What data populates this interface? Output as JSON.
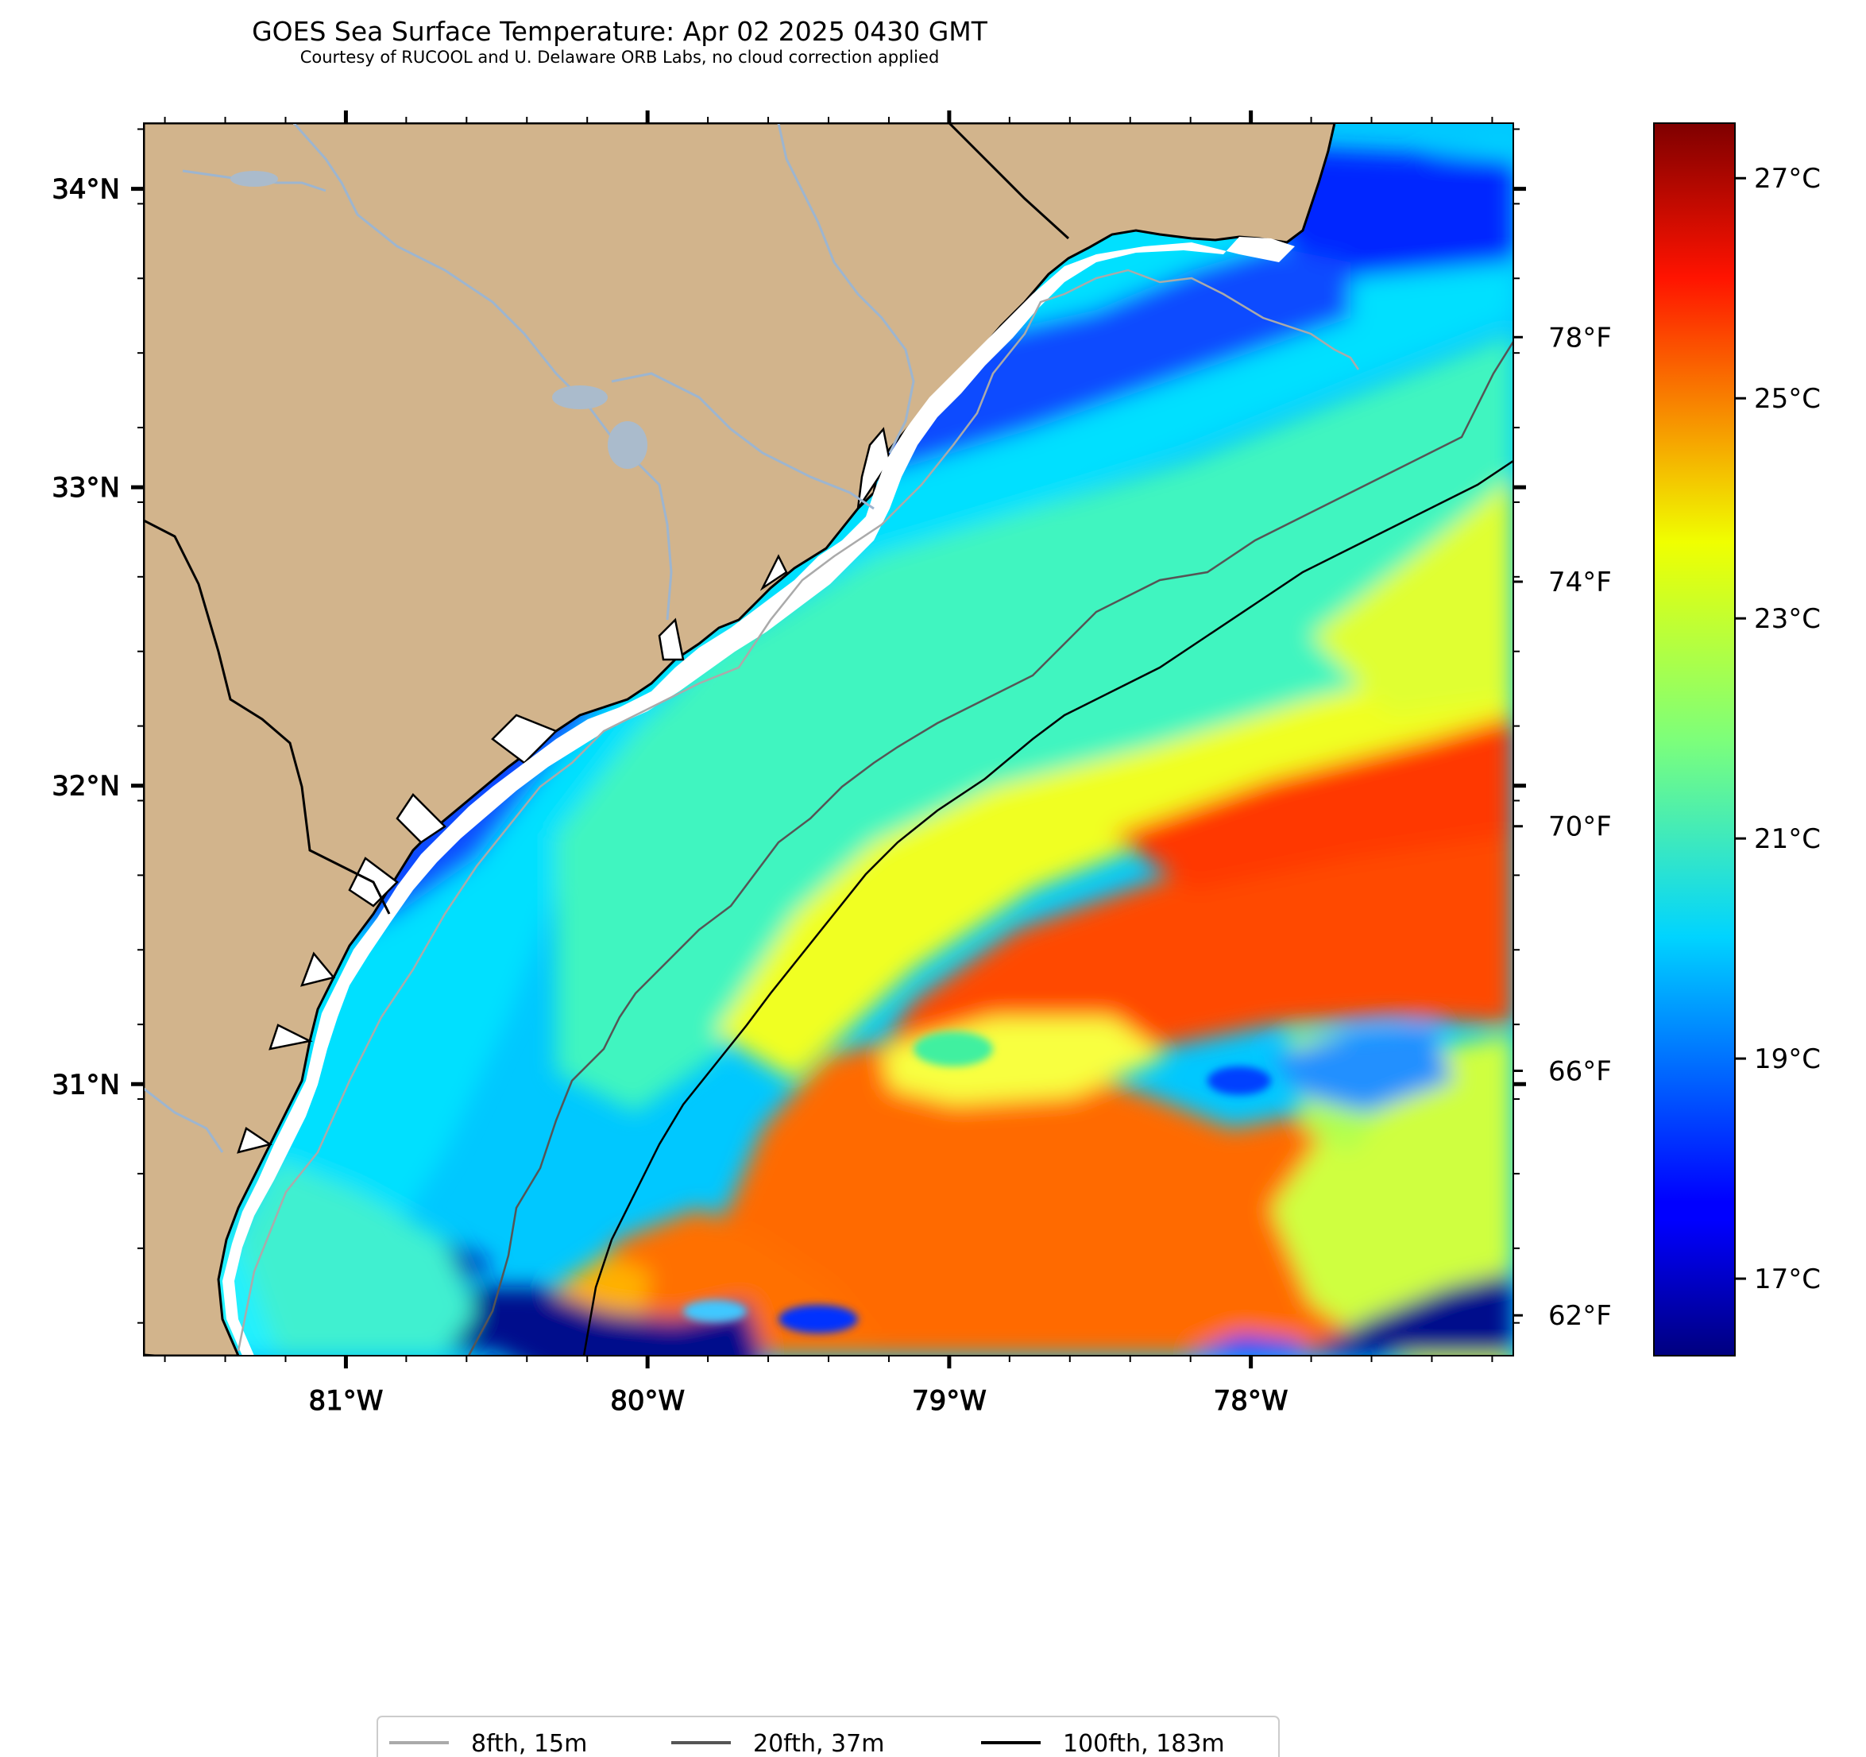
{
  "title": "GOES Sea Surface Temperature: Apr 02 2025 0430 GMT",
  "subtitle": "Courtesy of RUCOOL and U. Delaware ORB Labs, no cloud correction applied",
  "axes": {
    "lat_labels": [
      "34°N",
      "33°N",
      "32°N",
      "31°N"
    ],
    "lon_labels": [
      "81°W",
      "80°W",
      "79°W",
      "78°W"
    ],
    "lat_range": [
      30.09,
      34.22
    ],
    "lon_range": [
      -81.67,
      -77.13
    ]
  },
  "colorbar": {
    "celsius_labels": [
      "27°C",
      "25°C",
      "23°C",
      "21°C",
      "19°C",
      "17°C"
    ],
    "fahrenheit_labels": [
      "78°F",
      "74°F",
      "70°F",
      "66°F",
      "62°F"
    ],
    "range_c": [
      16.3,
      27.5
    ],
    "colormap": "jet"
  },
  "legend": {
    "items": [
      {
        "label": "8fth, 15m",
        "color": "#aaaaaa"
      },
      {
        "label": "20fth, 37m",
        "color": "#555555"
      },
      {
        "label": "100fth, 183m",
        "color": "#000000"
      }
    ]
  },
  "colors": {
    "land": "#d2b48c",
    "coastline": "#000000",
    "rivers": "#9db5cf",
    "border": "#000000"
  }
}
